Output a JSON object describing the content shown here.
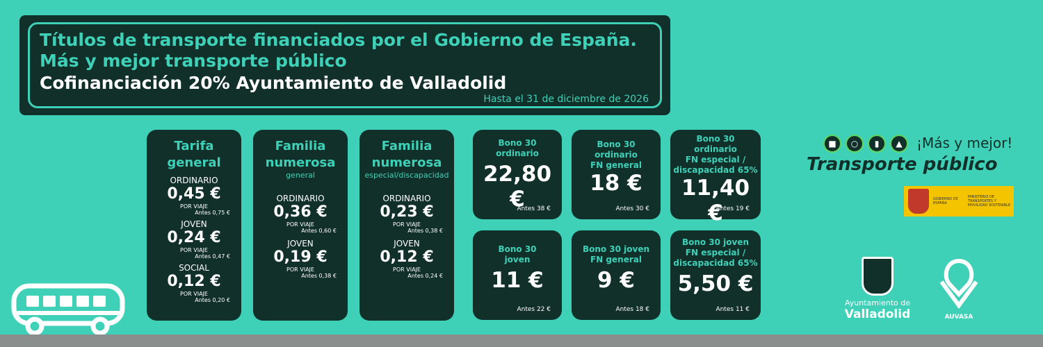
{
  "header": {
    "line1": "Títulos de transporte financiados por el Gobierno de España.",
    "line2": "Más y mejor transporte público",
    "line3": "Cofinanciación 20% Ayuntamiento de Valladolid",
    "until": "Hasta el 31 de diciembre de 2026"
  },
  "tariffs": [
    {
      "title1": "Tarifa",
      "title2": "general",
      "subtitle": "",
      "items": [
        {
          "label": "ORDINARIO",
          "price": "0,45 €",
          "per": "POR VIAJE",
          "before": "Antes 0,75 €"
        },
        {
          "label": "JOVEN",
          "price": "0,24 €",
          "per": "POR VIAJE",
          "before": "Antes 0,47 €"
        },
        {
          "label": "SOCIAL",
          "price": "0,12 €",
          "per": "POR VIAJE",
          "before": "Antes 0,20 €"
        }
      ]
    },
    {
      "title1": "Familia",
      "title2": "numerosa",
      "subtitle": "general",
      "items": [
        {
          "label": "ORDINARIO",
          "price": "0,36 €",
          "per": "POR VIAJE",
          "before": "Antes 0,60 €"
        },
        {
          "label": "JOVEN",
          "price": "0,19 €",
          "per": "POR VIAJE",
          "before": "Antes 0,38 €"
        }
      ]
    },
    {
      "title1": "Familia",
      "title2": "numerosa",
      "subtitle": "especial/discapacidad",
      "items": [
        {
          "label": "ORDINARIO",
          "price": "0,23 €",
          "per": "POR VIAJE",
          "before": "Antes 0,38 €"
        },
        {
          "label": "JOVEN",
          "price": "0,12 €",
          "per": "POR VIAJE",
          "before": "Antes 0,24 €"
        }
      ]
    }
  ],
  "bonos": [
    {
      "lines": [
        "Bono 30",
        "ordinario"
      ],
      "price": "22,80 €",
      "before": "Antes 38 €"
    },
    {
      "lines": [
        "Bono 30",
        "ordinario",
        "FN general"
      ],
      "price": "18 €",
      "before": "Antes 30 €"
    },
    {
      "lines": [
        "Bono 30",
        "ordinario",
        "FN especial /",
        "discapacidad 65%"
      ],
      "price": "11,40 €",
      "before": "Antes 19 €"
    },
    {
      "lines": [
        "Bono 30",
        "joven"
      ],
      "price": "11 €",
      "before": "Antes 22 €"
    },
    {
      "lines": [
        "Bono 30 joven",
        "FN general"
      ],
      "price": "9 €",
      "before": "Antes 18 €"
    },
    {
      "lines": [
        "Bono 30 joven",
        "FN especial /",
        "discapacidad 65%"
      ],
      "price": "5,50 €",
      "before": "Antes 11 €"
    }
  ],
  "branding": {
    "tagline": "¡Más y mejor!",
    "transporte": "Transporte público",
    "gov": "GOBIERNO DE ESPAÑA",
    "ministry": "MINISTERIO DE TRANSPORTES Y MOVILIDAD SOSTENIBLE",
    "ayto_line1": "Ayuntamiento de",
    "ayto_line2": "Valladolid",
    "auvasa": "AUVASA",
    "mode_icons": [
      "bus-icon",
      "bicycle-icon",
      "tram-icon",
      "train-icon"
    ]
  },
  "colors": {
    "background": "#3ed1b8",
    "dark": "#12302a",
    "accent": "#3ed1b8"
  }
}
